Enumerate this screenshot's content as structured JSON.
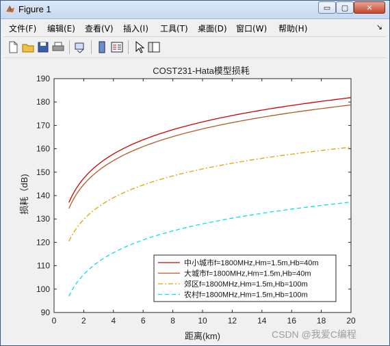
{
  "window": {
    "title": "Figure 1",
    "buttons": {
      "minimize": "▭",
      "maximize": "▢",
      "close": "✕"
    }
  },
  "menu": {
    "items": [
      "文件(F)",
      "编辑(E)",
      "查看(V)",
      "插入(I)",
      "工具(T)",
      "桌面(D)",
      "窗口(W)",
      "帮助(H)"
    ],
    "overflow": "↘"
  },
  "toolbar": {
    "icons": [
      "new-figure-icon",
      "open-file-icon",
      "save-icon",
      "print-icon",
      "link-icon",
      "colorbar-icon",
      "legend-icon",
      "pointer-icon",
      "property-editor-icon"
    ]
  },
  "watermark": "CSDN @我爱C编程",
  "colors": {
    "urban_small": "#cc0000",
    "urban_large": "#b05a28",
    "suburban": "#e8a000",
    "rural": "#00e0f0"
  },
  "chart_data": {
    "type": "line",
    "title": "COST231-Hata模型损耗",
    "xlabel": "距离(km)",
    "ylabel": "损耗（dB)",
    "xlim": [
      0,
      20
    ],
    "ylim": [
      90,
      190
    ],
    "xticks": [
      0,
      2,
      4,
      6,
      8,
      10,
      12,
      14,
      16,
      18,
      20
    ],
    "yticks": [
      90,
      100,
      110,
      120,
      130,
      140,
      150,
      160,
      170,
      180,
      190
    ],
    "grid": false,
    "legend_position": "bottom-right",
    "x": [
      1,
      1.5,
      2,
      3,
      4,
      5,
      6,
      8,
      10,
      12,
      14,
      16,
      18,
      20
    ],
    "series": [
      {
        "name": "中小城市f=1800MHz,Hm=1.5m,Hb=40m",
        "style": "solid",
        "color": "#cc0000",
        "values": [
          137.0,
          143.1,
          147.4,
          153.5,
          157.8,
          161.1,
          163.8,
          168.2,
          171.5,
          174.2,
          176.5,
          178.5,
          180.3,
          181.9
        ]
      },
      {
        "name": "大城市f=1800MHz,Hm=1.5m,Hb=40m",
        "style": "solid",
        "color": "#b05a28",
        "values": [
          134.5,
          140.5,
          144.7,
          150.7,
          155.0,
          158.2,
          160.9,
          165.2,
          168.5,
          171.2,
          173.5,
          175.4,
          177.2,
          178.8
        ]
      },
      {
        "name": "郊区f=1800MHz,Hm=1.5m,Hb=100m",
        "style": "dashdot",
        "color": "#e8a000",
        "values": [
          120.5,
          125.9,
          129.8,
          135.2,
          139.1,
          142.1,
          144.5,
          148.4,
          151.4,
          153.8,
          155.9,
          157.7,
          159.3,
          160.7
        ]
      },
      {
        "name": "农村f=1800MHz,Hm=1.5m,Hb=100m",
        "style": "dashed",
        "color": "#00e0f0",
        "values": [
          97.0,
          102.4,
          106.3,
          111.7,
          115.6,
          118.6,
          121.0,
          124.9,
          127.9,
          130.3,
          132.4,
          134.2,
          135.8,
          137.2
        ]
      }
    ]
  }
}
